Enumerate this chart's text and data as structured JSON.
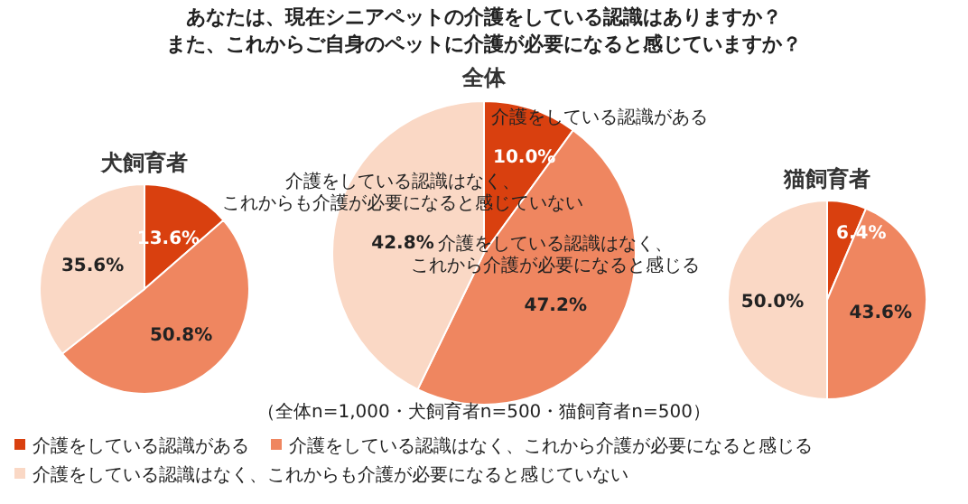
{
  "chart_data": [
    {
      "type": "pie",
      "title": "全体",
      "categories": [
        "介護をしている認識がある",
        "介護をしている認識はなく、これから介護が必要になると感じる",
        "介護をしている認識はなく、これからも介護が必要になると感じていない"
      ],
      "values": [
        10.0,
        47.2,
        42.8
      ],
      "value_labels": [
        "10.0%",
        "47.2%",
        "42.8%"
      ],
      "colors": [
        "#d9400f",
        "#ef8660",
        "#fad8c5"
      ],
      "legend": "bottom",
      "annotations": [
        "あなたは、現在シニアペットの介護をしている認識はありますか？",
        "また、これからご自身のペットに介護が必要になると感じていますか？",
        "（全体n=1,000・犬飼育者n=500・猫飼育者n=500）"
      ]
    },
    {
      "type": "pie",
      "title": "犬飼育者",
      "values": [
        13.6,
        50.8,
        35.6
      ],
      "value_labels": [
        "13.6%",
        "50.8%",
        "35.6%"
      ],
      "colors": [
        "#d9400f",
        "#ef8660",
        "#fad8c5"
      ]
    },
    {
      "type": "pie",
      "title": "猫飼育者",
      "values": [
        6.4,
        43.6,
        50.0
      ],
      "value_labels": [
        "6.4%",
        "43.6%",
        "50.0%"
      ],
      "colors": [
        "#d9400f",
        "#ef8660",
        "#fad8c5"
      ]
    }
  ]
}
